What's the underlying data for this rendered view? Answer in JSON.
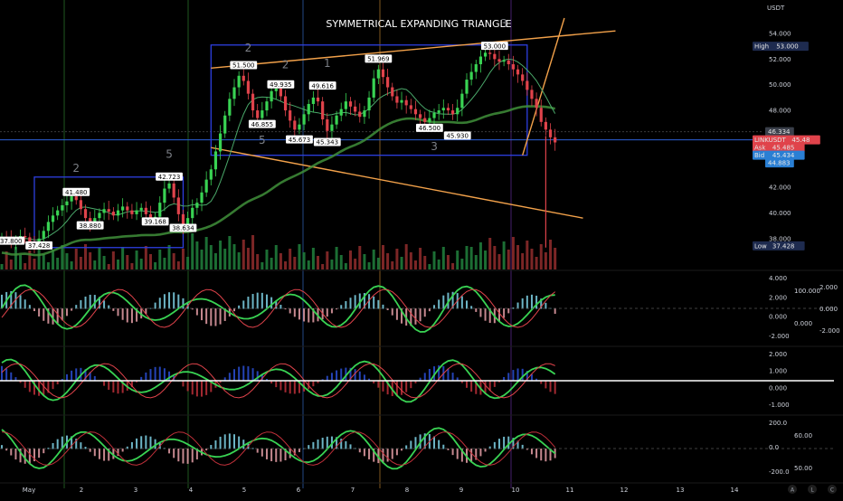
{
  "chart_data": {
    "type": "candlestick",
    "title": "SYMMETRICAL EXPANDING TRIANGLE",
    "currency": "USDT",
    "ticker": "LINKUSDT",
    "x_labels": [
      "May",
      "2",
      "3",
      "4",
      "5",
      "6",
      "7",
      "8",
      "9",
      "10",
      "11",
      "12",
      "13",
      "14"
    ],
    "price_axis": {
      "ticks": [
        "54.000",
        "52.000",
        "50.000",
        "48.000",
        "46.000",
        "44.000",
        "42.000",
        "40.000",
        "38.000"
      ],
      "range": [
        37.0,
        55.2
      ]
    },
    "axis_tags": [
      {
        "label": "High",
        "value": "53.000",
        "price": 53.0,
        "color": "#1e2b4f"
      },
      {
        "label": "",
        "value": "46.334",
        "price": 46.334,
        "color": "#3a3f4a"
      },
      {
        "label": "LINKUSDT",
        "value": "45.48",
        "price": 45.7,
        "color": "#e0434b"
      },
      {
        "label": "Ask",
        "value": "45.485",
        "price": 45.1,
        "color": "#e0434b"
      },
      {
        "label": "Bid",
        "value": "45.434",
        "price": 44.5,
        "color": "#2a7fd4"
      },
      {
        "label": "",
        "value": "44.883",
        "price": 43.9,
        "color": "#2a7fd4"
      },
      {
        "label": "Low",
        "value": "37.428",
        "price": 37.428,
        "color": "#1e2b4f"
      }
    ],
    "swing_labels": [
      {
        "text": "37.800",
        "bar": 2,
        "price": 37.8
      },
      {
        "text": "37.428",
        "bar": 8,
        "price": 37.43
      },
      {
        "text": "41.480",
        "bar": 16,
        "price": 41.6
      },
      {
        "text": "38.880",
        "bar": 19,
        "price": 39.0
      },
      {
        "text": "39.168",
        "bar": 33,
        "price": 39.3
      },
      {
        "text": "42.723",
        "bar": 36,
        "price": 42.8
      },
      {
        "text": "38.634",
        "bar": 39,
        "price": 38.8
      },
      {
        "text": "51.500",
        "bar": 52,
        "price": 51.5
      },
      {
        "text": "46.855",
        "bar": 56,
        "price": 46.9
      },
      {
        "text": "49.935",
        "bar": 60,
        "price": 50.0
      },
      {
        "text": "45.673",
        "bar": 64,
        "price": 45.7
      },
      {
        "text": "49.616",
        "bar": 69,
        "price": 49.9
      },
      {
        "text": "45.343",
        "bar": 70,
        "price": 45.5
      },
      {
        "text": "51.969",
        "bar": 81,
        "price": 52.0
      },
      {
        "text": "46.500",
        "bar": 92,
        "price": 46.6
      },
      {
        "text": "45.930",
        "bar": 98,
        "price": 46.0
      },
      {
        "text": "53.000",
        "bar": 106,
        "price": 53.0
      }
    ],
    "wave_labels": [
      {
        "text": "2",
        "bar": 16,
        "price": 43.2
      },
      {
        "text": "5",
        "bar": 36,
        "price": 44.3
      },
      {
        "text": "2",
        "bar": 53,
        "price": 52.6
      },
      {
        "text": "5",
        "bar": 56,
        "price": 45.4
      },
      {
        "text": "2",
        "bar": 61,
        "price": 51.3
      },
      {
        "text": "1",
        "bar": 70,
        "price": 51.4
      },
      {
        "text": "3",
        "bar": 93,
        "price": 44.9
      },
      {
        "text": "3",
        "bar": 108,
        "price": 54.5
      }
    ],
    "ohlc_closes": [
      38.1,
      38.0,
      37.8,
      37.9,
      38.2,
      38.1,
      37.7,
      37.5,
      38.0,
      38.6,
      39.3,
      39.8,
      40.2,
      40.6,
      40.9,
      41.3,
      41.0,
      40.3,
      39.6,
      39.2,
      39.6,
      40.0,
      40.3,
      40.1,
      39.8,
      40.2,
      40.5,
      40.2,
      39.9,
      40.2,
      40.4,
      39.9,
      39.5,
      39.7,
      40.8,
      41.9,
      42.3,
      41.2,
      39.9,
      39.0,
      39.6,
      40.4,
      40.8,
      41.6,
      42.6,
      43.4,
      44.8,
      46.2,
      47.6,
      48.9,
      49.8,
      50.7,
      50.3,
      49.3,
      48.0,
      47.4,
      48.0,
      48.7,
      49.5,
      49.7,
      49.1,
      48.0,
      47.2,
      46.5,
      46.9,
      47.7,
      48.5,
      49.0,
      48.7,
      47.3,
      46.4,
      46.9,
      47.6,
      48.1,
      48.7,
      48.3,
      47.9,
      47.5,
      48.0,
      49.0,
      50.5,
      51.2,
      50.6,
      49.8,
      49.1,
      48.6,
      48.8,
      48.4,
      48.1,
      47.7,
      47.4,
      47.1,
      47.4,
      47.8,
      48.0,
      48.2,
      48.0,
      47.7,
      48.2,
      49.3,
      50.4,
      51.0,
      51.6,
      52.2,
      52.5,
      52.4,
      52.0,
      51.8,
      51.9,
      51.6,
      51.2,
      50.8,
      50.3,
      49.6,
      48.9,
      48.2,
      47.1,
      46.5,
      45.9,
      45.5
    ],
    "rectangles": [
      {
        "bar_start": 7,
        "bar_end": 39,
        "price_top": 42.8,
        "price_bottom": 37.3
      },
      {
        "bar_start": 45,
        "bar_end": 113,
        "price_top": 53.1,
        "price_bottom": 44.5
      }
    ],
    "trendlines": [
      {
        "from_bar": 45,
        "from_price": 51.3,
        "to_bar": 132,
        "to_price": 54.2
      },
      {
        "from_bar": 45,
        "from_price": 45.1,
        "to_bar": 125,
        "to_price": 39.6
      },
      {
        "from_bar": 112,
        "from_price": 44.5,
        "to_bar": 121,
        "to_price": 55.2
      }
    ],
    "oscillators": [
      {
        "ticks_left": [
          "4.000",
          "2.000",
          "0.000",
          "-2.000"
        ],
        "ticks_right": [
          "100.000",
          "0.000"
        ],
        "ticks_far": [
          "2.000",
          "0.000",
          "-2.000"
        ]
      },
      {
        "ticks_left": [
          "2.000",
          "1.000",
          "0.000",
          "-1.000"
        ]
      },
      {
        "ticks_left": [
          "200.0",
          "0.0",
          "-200.0"
        ],
        "ticks_right": [
          "60.00",
          "50.00"
        ]
      }
    ]
  }
}
